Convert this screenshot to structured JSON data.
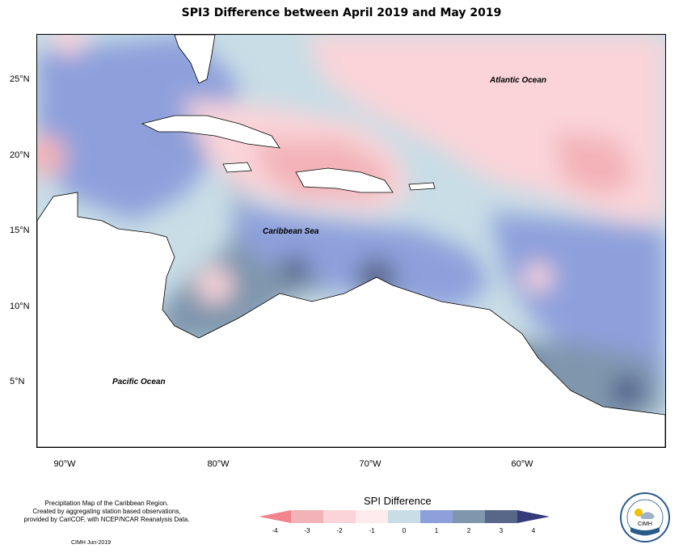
{
  "title": "SPI3 Difference between April 2019 and May 2019",
  "map": {
    "lat_labels": [
      "25°N",
      "20°N",
      "15°N",
      "10°N",
      "5°N"
    ],
    "lon_labels": [
      "90°W",
      "80°W",
      "70°W",
      "60°W"
    ],
    "regions": {
      "atlantic": "Atlantic Ocean",
      "caribbean": "Caribbean Sea",
      "pacific": "Pacific Ocean"
    }
  },
  "legend": {
    "title": "SPI Difference",
    "ticks": [
      "-4",
      "-3",
      "-2",
      "-1",
      "0",
      "1",
      "2",
      "3",
      "4"
    ],
    "colors": [
      "#f2848d",
      "#f2b3b8",
      "#fad4d9",
      "#fdebed",
      "#c8dde6",
      "#8ea0dc",
      "#7f96ad",
      "#586688",
      "#353a7a"
    ]
  },
  "footer": {
    "line1": "Precipitation Map of the Caribbean Region.",
    "line2": "Created by aggregating station based observations,",
    "line3": "provided by CariCOF, with NCEP/NCAR Reanalysis Data.",
    "credit": "CIMH  Jun-2019"
  },
  "logo": {
    "text": "CIMH"
  }
}
